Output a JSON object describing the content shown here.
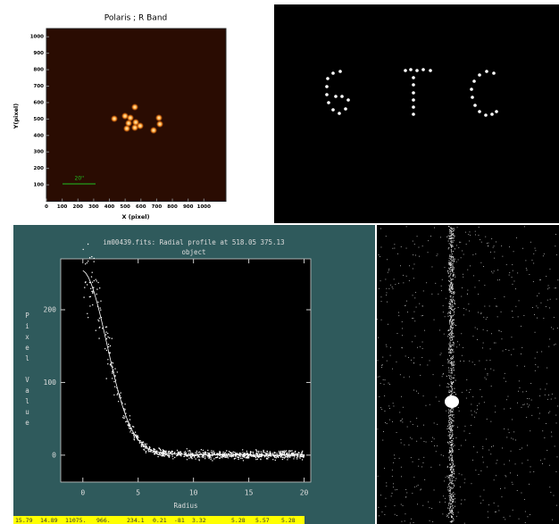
{
  "polaris_plot": {
    "title": "Polaris ; R Band",
    "x_label": "X (pixel)",
    "y_label": "Y(pixel)",
    "scale_label": "20''",
    "xlim": [
      0,
      1140
    ],
    "ylim": [
      0,
      1050
    ],
    "xticks": [
      0,
      100,
      200,
      300,
      400,
      500,
      600,
      700,
      800,
      900,
      1000
    ],
    "yticks": [
      100,
      200,
      300,
      400,
      500,
      600,
      700,
      800,
      900,
      1000
    ]
  },
  "radial_profile": {
    "title": "im00439.fits: Radial profile at 518.05 375.13",
    "subtitle": "object",
    "x_label": "Radius",
    "y_label": "Pixel Value",
    "xlim": [
      -2,
      20.6
    ],
    "ylim": [
      -37,
      270
    ],
    "xticks": [
      0,
      5,
      10,
      15,
      20
    ],
    "yticks": [
      0,
      100,
      200
    ]
  },
  "status_bar": [
    "15.79",
    "14.89",
    "11075.",
    "966.",
    "234.1",
    "0.21",
    "-81",
    "3.32",
    "5.28",
    "5.57",
    "5.28"
  ]
}
